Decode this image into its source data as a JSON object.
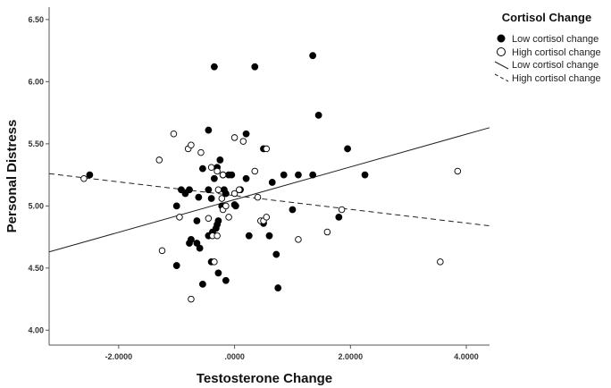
{
  "chart_data": {
    "type": "scatter",
    "xlabel": "Testosterone Change",
    "ylabel": "Personal Distress",
    "xlim": [
      -3.2,
      4.4
    ],
    "ylim": [
      3.88,
      6.6
    ],
    "x_ticks": [
      {
        "value": -2,
        "label": "-2.0000"
      },
      {
        "value": 0,
        "label": ".0000"
      },
      {
        "value": 2,
        "label": "2.0000"
      },
      {
        "value": 4,
        "label": "4.0000"
      }
    ],
    "y_ticks": [
      {
        "value": 4.0,
        "label": "4.00"
      },
      {
        "value": 4.5,
        "label": "4.50"
      },
      {
        "value": 5.0,
        "label": "5.00"
      },
      {
        "value": 5.5,
        "label": "5.50"
      },
      {
        "value": 6.0,
        "label": "6.00"
      },
      {
        "value": 6.5,
        "label": "6.50"
      }
    ],
    "grid": false,
    "legend": {
      "title": "Cortisol Change",
      "position": "right",
      "items": [
        {
          "label": "Low cortisol change",
          "kind": "filled-marker"
        },
        {
          "label": "High cortisol change",
          "kind": "hollow-marker"
        },
        {
          "label": "Low cortisol change",
          "kind": "solid-line"
        },
        {
          "label": "High cortisol change",
          "kind": "dashed-line"
        }
      ]
    },
    "series": [
      {
        "name": "Low cortisol change",
        "marker": "filled",
        "color": "#000000",
        "points": [
          [
            -2.5,
            5.25
          ],
          [
            -0.35,
            6.12
          ],
          [
            0.35,
            6.12
          ],
          [
            1.35,
            6.21
          ],
          [
            1.45,
            5.73
          ],
          [
            1.95,
            5.46
          ],
          [
            2.25,
            5.25
          ],
          [
            1.35,
            5.25
          ],
          [
            1.1,
            5.25
          ],
          [
            0.85,
            5.25
          ],
          [
            0.65,
            5.19
          ],
          [
            1.8,
            4.91
          ],
          [
            1.0,
            4.97
          ],
          [
            0.5,
            5.46
          ],
          [
            0.2,
            5.58
          ],
          [
            0.2,
            5.22
          ],
          [
            0.1,
            5.13
          ],
          [
            0.25,
            4.76
          ],
          [
            0.5,
            4.86
          ],
          [
            0.6,
            4.76
          ],
          [
            0.72,
            4.61
          ],
          [
            0.75,
            4.34
          ],
          [
            -0.15,
            4.4
          ],
          [
            -0.28,
            4.46
          ],
          [
            -0.4,
            4.55
          ],
          [
            -0.55,
            4.37
          ],
          [
            -0.65,
            4.7
          ],
          [
            -0.75,
            4.73
          ],
          [
            -1.0,
            4.52
          ],
          [
            -0.78,
            4.7
          ],
          [
            -1.0,
            5.0
          ],
          [
            -0.92,
            5.13
          ],
          [
            -0.85,
            5.1
          ],
          [
            -0.78,
            5.13
          ],
          [
            -0.65,
            4.88
          ],
          [
            -0.62,
            5.07
          ],
          [
            -0.55,
            5.3
          ],
          [
            -0.45,
            5.61
          ],
          [
            -0.45,
            5.13
          ],
          [
            -0.4,
            5.06
          ],
          [
            -0.35,
            5.22
          ],
          [
            -0.3,
            5.31
          ],
          [
            -0.25,
            5.37
          ],
          [
            -0.2,
            5.25
          ],
          [
            -0.18,
            5.13
          ],
          [
            -0.15,
            5.1
          ],
          [
            -0.1,
            5.25
          ],
          [
            -0.05,
            5.25
          ],
          [
            0.0,
            5.01
          ],
          [
            -0.28,
            4.88
          ],
          [
            -0.32,
            4.82
          ],
          [
            -0.38,
            4.79
          ],
          [
            -0.45,
            4.76
          ],
          [
            -0.6,
            4.66
          ],
          [
            -0.3,
            4.85
          ],
          [
            -0.22,
            5.0
          ],
          [
            0.02,
            5.0
          ]
        ]
      },
      {
        "name": "High cortisol change",
        "marker": "hollow",
        "color": "#000000",
        "points": [
          [
            -2.6,
            5.22
          ],
          [
            -1.3,
            5.37
          ],
          [
            -1.05,
            5.58
          ],
          [
            -0.8,
            5.46
          ],
          [
            -0.75,
            5.49
          ],
          [
            -0.58,
            5.43
          ],
          [
            -0.4,
            5.31
          ],
          [
            -0.3,
            5.28
          ],
          [
            -0.2,
            5.25
          ],
          [
            0.0,
            5.55
          ],
          [
            0.15,
            5.52
          ],
          [
            0.35,
            5.28
          ],
          [
            0.4,
            5.07
          ],
          [
            0.55,
            5.46
          ],
          [
            -0.95,
            4.91
          ],
          [
            -1.25,
            4.64
          ],
          [
            -0.75,
            4.25
          ],
          [
            -0.35,
            4.55
          ],
          [
            -0.45,
            4.9
          ],
          [
            -0.38,
            4.76
          ],
          [
            -0.3,
            4.76
          ],
          [
            -0.2,
            4.97
          ],
          [
            -0.15,
            5.0
          ],
          [
            -0.1,
            4.91
          ],
          [
            0.0,
            5.1
          ],
          [
            0.08,
            5.13
          ],
          [
            -0.28,
            5.13
          ],
          [
            -0.22,
            5.06
          ],
          [
            0.45,
            4.88
          ],
          [
            0.5,
            4.88
          ],
          [
            0.55,
            4.91
          ],
          [
            1.1,
            4.73
          ],
          [
            1.6,
            4.79
          ],
          [
            1.85,
            4.97
          ],
          [
            3.55,
            4.55
          ],
          [
            3.85,
            5.28
          ]
        ]
      }
    ],
    "fit_lines": [
      {
        "name": "Low cortisol change",
        "style": "solid",
        "color": "#222222",
        "from": [
          -3.2,
          4.63
        ],
        "to": [
          4.4,
          5.63
        ]
      },
      {
        "name": "High cortisol change",
        "style": "dashed",
        "color": "#222222",
        "from": [
          -3.2,
          5.26
        ],
        "to": [
          4.4,
          4.84
        ]
      }
    ]
  }
}
